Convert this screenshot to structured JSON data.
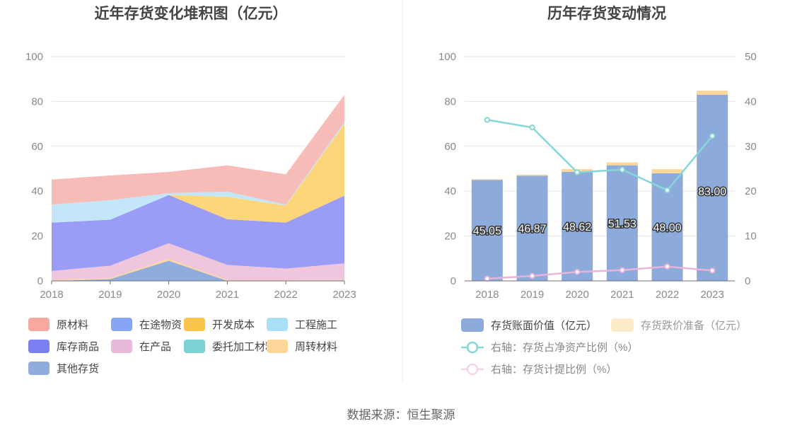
{
  "source_text": "数据来源：恒生聚源",
  "chart_data": [
    {
      "type": "area",
      "title": "近年存货变化堆积图（亿元）",
      "x": [
        "2018",
        "2019",
        "2020",
        "2021",
        "2022",
        "2023"
      ],
      "ylim": [
        0,
        100
      ],
      "yticks": [
        0,
        20,
        40,
        60,
        80,
        100
      ],
      "grid": true,
      "legend_position": "bottom",
      "series": [
        {
          "name": "其他存货",
          "color": "#8facdc",
          "values": [
            0,
            0.8,
            9.0,
            0,
            0,
            0
          ]
        },
        {
          "name": "周转材料",
          "color": "#fdd699",
          "values": [
            0.4,
            0.5,
            0.8,
            0.3,
            0.3,
            0.4
          ]
        },
        {
          "name": "在产品",
          "color": "#f0c6dd",
          "values": [
            4.0,
            5.5,
            7.0,
            6.8,
            5.2,
            7.4
          ]
        },
        {
          "name": "库存商品",
          "color": "#9a9cf6",
          "values": [
            21.6,
            20.5,
            21.5,
            20.4,
            20.5,
            30.2
          ]
        },
        {
          "name": "开发成本",
          "color": "#fdd67c",
          "values": [
            0,
            0,
            0,
            10.0,
            7.6,
            32.0
          ]
        },
        {
          "name": "工程施工",
          "color": "#c3e7f9",
          "values": [
            8.0,
            8.7,
            0.8,
            2.3,
            0.4,
            0.8
          ]
        },
        {
          "name": "委托加工材料",
          "color": "#8ad6d6",
          "values": [
            0,
            0,
            0,
            0,
            0,
            0
          ]
        },
        {
          "name": "原材料",
          "color": "#f8bcb8",
          "values": [
            11.2,
            11.0,
            9.5,
            11.7,
            13.5,
            12.2
          ]
        }
      ],
      "legend": [
        {
          "name": "原材料",
          "color": "#f8a89f"
        },
        {
          "name": "在途物资",
          "color": "#87a5f7"
        },
        {
          "name": "开发成本",
          "color": "#fbc54b"
        },
        {
          "name": "工程施工",
          "color": "#a9dff7"
        },
        {
          "name": "库存商品",
          "color": "#7a80f2"
        },
        {
          "name": "在产品",
          "color": "#e8b9d9"
        },
        {
          "name": "委托加工材料",
          "color": "#7dd3d3"
        },
        {
          "name": "周转材料",
          "color": "#fdd699"
        },
        {
          "name": "其他存货",
          "color": "#8facdc"
        }
      ]
    },
    {
      "type": "bar",
      "title": "历年存货变动情况",
      "categories": [
        "2018",
        "2019",
        "2020",
        "2021",
        "2022",
        "2023"
      ],
      "ylim": [
        0,
        100
      ],
      "yticks": [
        0,
        20,
        40,
        60,
        80,
        100
      ],
      "y2lim": [
        0,
        50
      ],
      "y2ticks": [
        0,
        10,
        20,
        30,
        40,
        50
      ],
      "grid": true,
      "legend_position": "bottom",
      "series": [
        {
          "name": "存货账面价值（亿元）",
          "color": "#8dabda",
          "values": [
            45.05,
            46.87,
            48.62,
            51.53,
            48.0,
            83.0
          ],
          "labels": [
            "45.05",
            "46.87",
            "48.62",
            "51.53",
            "48.00",
            "83.00"
          ]
        },
        {
          "name": "存货跌价准备（亿元）",
          "color": "#fdd699",
          "values": [
            0.3,
            0.5,
            1.2,
            1.3,
            1.8,
            1.8
          ]
        }
      ],
      "line_series": [
        {
          "name": "右轴：存货占净资产比例（%）",
          "color": "#86d7d8",
          "values": [
            35.9,
            34.2,
            24.2,
            24.8,
            20.2,
            32.3
          ]
        },
        {
          "name": "右轴：存货计提比例（%）",
          "color": "#e8b4d9",
          "values": [
            0.5,
            1.1,
            2.0,
            2.4,
            3.2,
            2.3
          ]
        }
      ]
    }
  ]
}
